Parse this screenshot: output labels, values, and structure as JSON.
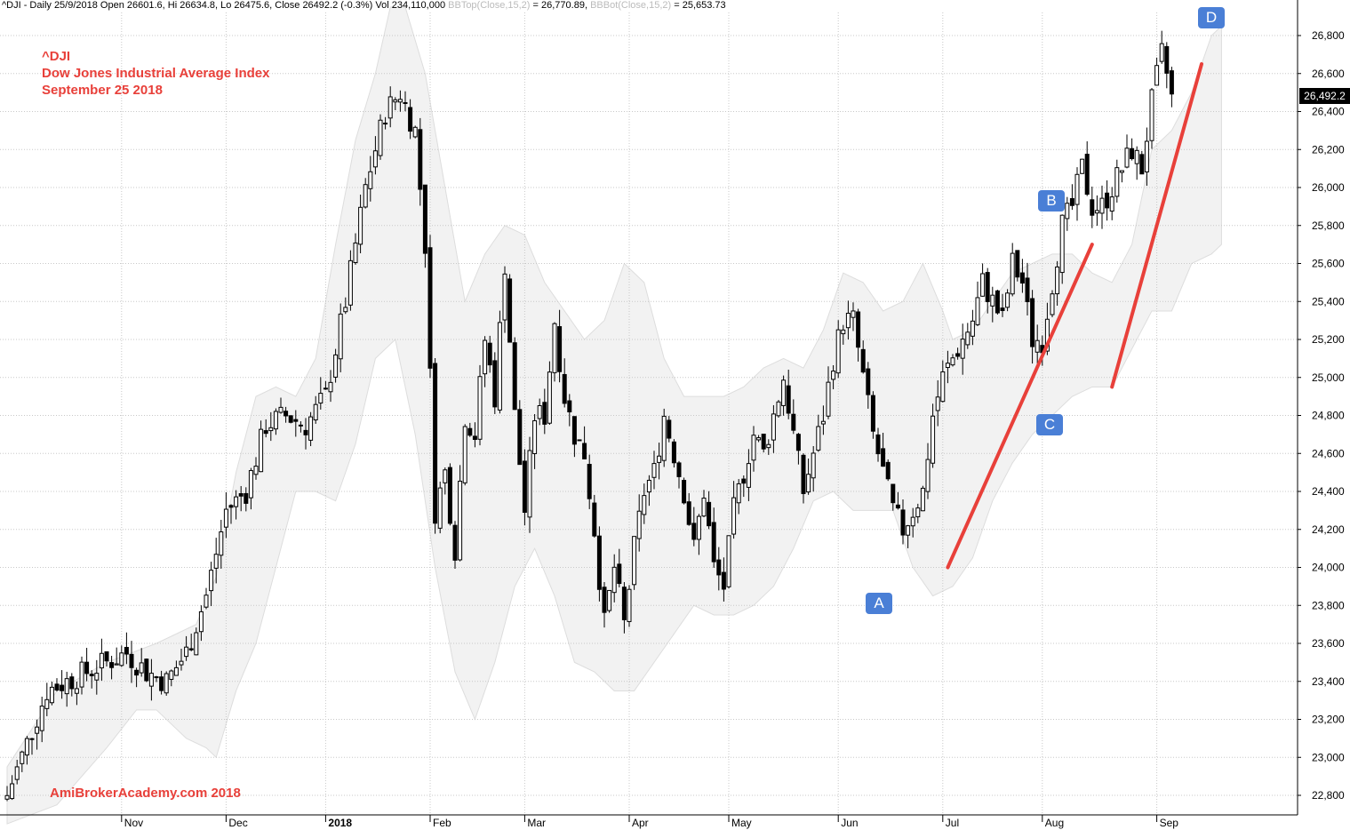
{
  "header": {
    "symbol_text": "^DJI - Daily 25/9/2018 Open 26601.6, Hi 26634.8, Lo 26475.6, Close 26492.2 (-0.3%) Vol 234,110,000 ",
    "bbtop_label": "BBTop(Close,15,2)",
    "bbtop_value": " = 26,770.89, ",
    "bbbot_label": "BBBot(Close,15,2)",
    "bbbot_value": " = 25,653.73"
  },
  "annotations": {
    "symbol": "^DJI",
    "name": "Dow Jones Industrial Average Index",
    "date": "September 25 2018",
    "watermark": "AmiBrokerAcademy.com   2018",
    "last_price_label": "26,492.2",
    "markers": [
      "A",
      "B",
      "C",
      "D"
    ]
  },
  "colors": {
    "band_fill": "#f2f2f2",
    "band_edge": "#dddddd",
    "grid": "#c8c8c8",
    "candle": "#000000",
    "annotation_text": "#e8403a",
    "trendline": "#e8403a",
    "marker_bg": "#4a7fd6"
  },
  "chart_data": {
    "type": "candlestick",
    "title": "^DJI - Daily",
    "y_axis": {
      "side": "right",
      "ylim": [
        22700,
        26900
      ],
      "ticks": [
        22800,
        23000,
        23200,
        23400,
        23600,
        23800,
        24000,
        24200,
        24400,
        24600,
        24800,
        25000,
        25200,
        25400,
        25600,
        25800,
        26000,
        26200,
        26400,
        26600,
        26800
      ],
      "tick_labels": [
        "22,800",
        "23,000",
        "23,200",
        "23,400",
        "23,600",
        "23,800",
        "24,000",
        "24,200",
        "24,400",
        "24,600",
        "24,800",
        "25,000",
        "25,200",
        "25,400",
        "25,600",
        "25,800",
        "26,000",
        "26,200",
        "26,400",
        "26,600",
        "26,800"
      ]
    },
    "x_axis": {
      "month_labels": [
        {
          "label": "Nov",
          "index": 23
        },
        {
          "label": "Dec",
          "index": 44
        },
        {
          "label": "2018",
          "index": 64
        },
        {
          "label": "Feb",
          "index": 85
        },
        {
          "label": "Mar",
          "index": 104
        },
        {
          "label": "Apr",
          "index": 125
        },
        {
          "label": "May",
          "index": 145
        },
        {
          "label": "Jun",
          "index": 167
        },
        {
          "label": "Jul",
          "index": 188
        },
        {
          "label": "Aug",
          "index": 208
        },
        {
          "label": "Sep",
          "index": 231
        }
      ]
    },
    "grid": true,
    "bollinger": {
      "period": 15,
      "stddev": 2,
      "upper": [
        [
          0,
          22950
        ],
        [
          10,
          23350
        ],
        [
          20,
          23500
        ],
        [
          30,
          23600
        ],
        [
          38,
          23700
        ],
        [
          42,
          23950
        ],
        [
          46,
          24500
        ],
        [
          50,
          24900
        ],
        [
          54,
          24950
        ],
        [
          58,
          24900
        ],
        [
          62,
          25100
        ],
        [
          66,
          25700
        ],
        [
          70,
          26250
        ],
        [
          74,
          26600
        ],
        [
          77,
          26950
        ],
        [
          80,
          26950
        ],
        [
          84,
          26600
        ],
        [
          88,
          26000
        ],
        [
          92,
          25400
        ],
        [
          96,
          25650
        ],
        [
          100,
          25800
        ],
        [
          104,
          25750
        ],
        [
          108,
          25500
        ],
        [
          112,
          25350
        ],
        [
          116,
          25200
        ],
        [
          120,
          25300
        ],
        [
          124,
          25600
        ],
        [
          128,
          25500
        ],
        [
          132,
          25100
        ],
        [
          136,
          24900
        ],
        [
          140,
          24900
        ],
        [
          144,
          24900
        ],
        [
          148,
          24950
        ],
        [
          152,
          25050
        ],
        [
          156,
          25100
        ],
        [
          160,
          25050
        ],
        [
          164,
          25250
        ],
        [
          168,
          25550
        ],
        [
          172,
          25500
        ],
        [
          176,
          25350
        ],
        [
          180,
          25400
        ],
        [
          184,
          25600
        ],
        [
          188,
          25350
        ],
        [
          190,
          25200
        ],
        [
          194,
          25250
        ],
        [
          198,
          25400
        ],
        [
          202,
          25550
        ],
        [
          206,
          25600
        ],
        [
          210,
          25650
        ],
        [
          214,
          25650
        ],
        [
          218,
          25550
        ],
        [
          222,
          25500
        ],
        [
          226,
          25700
        ],
        [
          230,
          26200
        ],
        [
          234,
          26300
        ],
        [
          238,
          26500
        ],
        [
          242,
          26800
        ],
        [
          244,
          26850
        ]
      ],
      "lower": [
        [
          0,
          22650
        ],
        [
          10,
          22750
        ],
        [
          20,
          23050
        ],
        [
          26,
          23250
        ],
        [
          30,
          23250
        ],
        [
          36,
          23100
        ],
        [
          40,
          23050
        ],
        [
          42,
          23000
        ],
        [
          46,
          23350
        ],
        [
          50,
          23600
        ],
        [
          54,
          24000
        ],
        [
          58,
          24400
        ],
        [
          62,
          24400
        ],
        [
          66,
          24350
        ],
        [
          70,
          24650
        ],
        [
          74,
          25100
        ],
        [
          78,
          25200
        ],
        [
          82,
          24700
        ],
        [
          86,
          24000
        ],
        [
          90,
          23450
        ],
        [
          94,
          23200
        ],
        [
          98,
          23500
        ],
        [
          102,
          23900
        ],
        [
          106,
          24100
        ],
        [
          110,
          23850
        ],
        [
          114,
          23500
        ],
        [
          118,
          23450
        ],
        [
          122,
          23350
        ],
        [
          126,
          23350
        ],
        [
          130,
          23500
        ],
        [
          134,
          23650
        ],
        [
          138,
          23800
        ],
        [
          142,
          23750
        ],
        [
          146,
          23750
        ],
        [
          150,
          23800
        ],
        [
          154,
          23900
        ],
        [
          158,
          24100
        ],
        [
          162,
          24350
        ],
        [
          166,
          24400
        ],
        [
          170,
          24300
        ],
        [
          174,
          24300
        ],
        [
          178,
          24300
        ],
        [
          182,
          24000
        ],
        [
          186,
          23850
        ],
        [
          190,
          23900
        ],
        [
          194,
          24050
        ],
        [
          198,
          24350
        ],
        [
          202,
          24550
        ],
        [
          206,
          24700
        ],
        [
          210,
          24800
        ],
        [
          214,
          24900
        ],
        [
          218,
          24950
        ],
        [
          222,
          24950
        ],
        [
          226,
          25150
        ],
        [
          230,
          25350
        ],
        [
          234,
          25350
        ],
        [
          238,
          25600
        ],
        [
          242,
          25650
        ],
        [
          244,
          25700
        ]
      ]
    },
    "trendlines": [
      {
        "from": [
          189,
          24000
        ],
        "to": [
          218,
          25700
        ]
      },
      {
        "from": [
          222,
          24950
        ],
        "to": [
          240,
          26650
        ]
      }
    ],
    "marker_points": [
      {
        "label": "A",
        "index": 184,
        "value": 23790
      },
      {
        "label": "B",
        "index": 219,
        "value": 25880
      },
      {
        "label": "C",
        "index": 219,
        "value": 24710
      },
      {
        "label": "D",
        "index": 251,
        "value": 26890
      }
    ],
    "last_close": 26492.2,
    "pivots": [
      [
        0,
        22800
      ],
      [
        8,
        23350
      ],
      [
        16,
        23450
      ],
      [
        24,
        23550
      ],
      [
        28,
        23450
      ],
      [
        32,
        23400
      ],
      [
        36,
        23550
      ],
      [
        40,
        23850
      ],
      [
        44,
        24300
      ],
      [
        48,
        24400
      ],
      [
        52,
        24750
      ],
      [
        56,
        24800
      ],
      [
        60,
        24750
      ],
      [
        64,
        24900
      ],
      [
        68,
        25400
      ],
      [
        72,
        26000
      ],
      [
        76,
        26400
      ],
      [
        79,
        26500
      ],
      [
        82,
        26300
      ],
      [
        84,
        25700
      ],
      [
        86,
        24300
      ],
      [
        88,
        24500
      ],
      [
        90,
        24100
      ],
      [
        92,
        24800
      ],
      [
        94,
        24700
      ],
      [
        96,
        25200
      ],
      [
        98,
        24900
      ],
      [
        100,
        25600
      ],
      [
        102,
        24800
      ],
      [
        104,
        24300
      ],
      [
        106,
        24800
      ],
      [
        108,
        24800
      ],
      [
        110,
        25300
      ],
      [
        112,
        24900
      ],
      [
        114,
        24700
      ],
      [
        116,
        24600
      ],
      [
        118,
        24200
      ],
      [
        120,
        23700
      ],
      [
        122,
        24000
      ],
      [
        124,
        23700
      ],
      [
        126,
        24100
      ],
      [
        128,
        24400
      ],
      [
        130,
        24500
      ],
      [
        132,
        24800
      ],
      [
        134,
        24600
      ],
      [
        136,
        24400
      ],
      [
        138,
        24100
      ],
      [
        140,
        24400
      ],
      [
        142,
        24000
      ],
      [
        144,
        23900
      ],
      [
        146,
        24300
      ],
      [
        148,
        24500
      ],
      [
        150,
        24700
      ],
      [
        152,
        24600
      ],
      [
        154,
        24800
      ],
      [
        156,
        25000
      ],
      [
        158,
        24700
      ],
      [
        160,
        24400
      ],
      [
        162,
        24600
      ],
      [
        164,
        24800
      ],
      [
        166,
        25100
      ],
      [
        168,
        25300
      ],
      [
        170,
        25300
      ],
      [
        172,
        25000
      ],
      [
        174,
        24700
      ],
      [
        176,
        24500
      ],
      [
        178,
        24300
      ],
      [
        180,
        24200
      ],
      [
        182,
        24300
      ],
      [
        184,
        24400
      ],
      [
        186,
        24800
      ],
      [
        188,
        25000
      ],
      [
        190,
        25100
      ],
      [
        192,
        25200
      ],
      [
        194,
        25300
      ],
      [
        196,
        25500
      ],
      [
        198,
        25400
      ],
      [
        200,
        25300
      ],
      [
        202,
        25600
      ],
      [
        204,
        25500
      ],
      [
        206,
        25200
      ],
      [
        208,
        25200
      ],
      [
        210,
        25500
      ],
      [
        212,
        25800
      ],
      [
        214,
        25900
      ],
      [
        216,
        26100
      ],
      [
        218,
        25900
      ],
      [
        220,
        25900
      ],
      [
        222,
        26000
      ],
      [
        224,
        26100
      ],
      [
        226,
        26200
      ],
      [
        228,
        26100
      ],
      [
        230,
        26450
      ],
      [
        232,
        26700
      ],
      [
        233,
        26600
      ],
      [
        234,
        26492
      ]
    ]
  }
}
